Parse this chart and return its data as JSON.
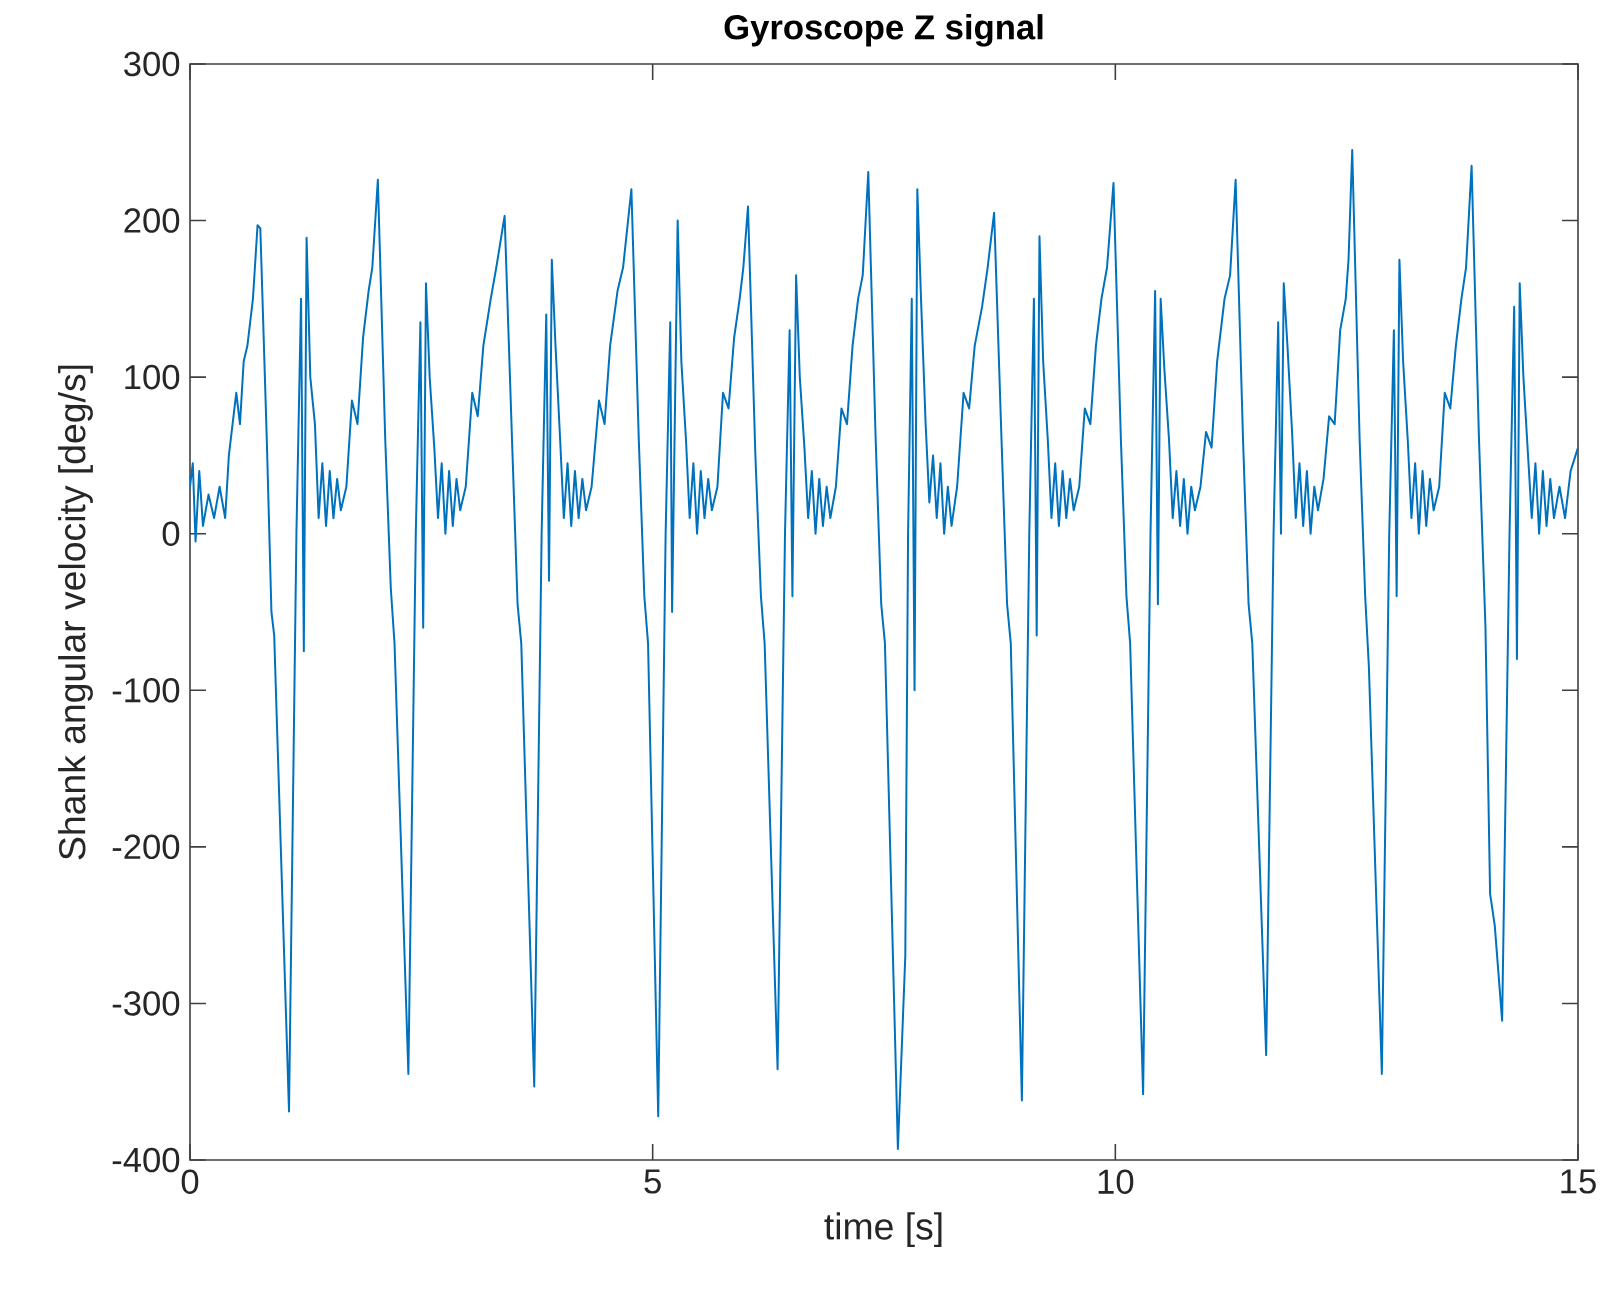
{
  "chart_data": {
    "type": "line",
    "title": "Gyroscope Z signal",
    "xlabel": "time [s]",
    "ylabel": "Shank angular velocity [deg/s]",
    "xlim": [
      0,
      15
    ],
    "ylim": [
      -400,
      300
    ],
    "xticks": [
      0,
      5,
      10,
      15
    ],
    "yticks": [
      -400,
      -300,
      -200,
      -100,
      0,
      100,
      200,
      300
    ],
    "series": [
      {
        "color": "#0072bd",
        "x": [
          0,
          0.03,
          0.06,
          0.1,
          0.14,
          0.2,
          0.26,
          0.32,
          0.38,
          0.42,
          0.46,
          0.5,
          0.54,
          0.58,
          0.62,
          0.68,
          0.73,
          0.76,
          0.83,
          0.88,
          0.91,
          1.07,
          1.15,
          1.2,
          1.23,
          1.26,
          1.3,
          1.35,
          1.39,
          1.43,
          1.47,
          1.51,
          1.55,
          1.59,
          1.63,
          1.69,
          1.75,
          1.81,
          1.87,
          1.93,
          1.97,
          2.03,
          2.11,
          2.17,
          2.21,
          2.36,
          2.44,
          2.49,
          2.52,
          2.55,
          2.59,
          2.64,
          2.68,
          2.72,
          2.76,
          2.8,
          2.84,
          2.88,
          2.92,
          2.98,
          3.05,
          3.11,
          3.17,
          3.25,
          3.31,
          3.4,
          3.48,
          3.54,
          3.58,
          3.72,
          3.8,
          3.85,
          3.88,
          3.91,
          3.95,
          4.0,
          4.04,
          4.08,
          4.12,
          4.16,
          4.2,
          4.24,
          4.28,
          4.34,
          4.42,
          4.48,
          4.54,
          4.62,
          4.68,
          4.77,
          4.85,
          4.91,
          4.95,
          5.06,
          5.14,
          5.19,
          5.21,
          5.27,
          5.31,
          5.36,
          5.4,
          5.44,
          5.48,
          5.52,
          5.56,
          5.6,
          5.64,
          5.7,
          5.76,
          5.82,
          5.88,
          5.94,
          5.98,
          6.03,
          6.11,
          6.17,
          6.21,
          6.35,
          6.43,
          6.48,
          6.51,
          6.55,
          6.59,
          6.64,
          6.68,
          6.72,
          6.76,
          6.8,
          6.84,
          6.88,
          6.92,
          6.98,
          7.04,
          7.1,
          7.16,
          7.22,
          7.27,
          7.33,
          7.41,
          7.47,
          7.51,
          7.65,
          7.73,
          7.76,
          7.8,
          7.83,
          7.86,
          7.9,
          7.95,
          7.99,
          8.03,
          8.07,
          8.11,
          8.15,
          8.19,
          8.23,
          8.29,
          8.36,
          8.42,
          8.48,
          8.56,
          8.62,
          8.69,
          8.77,
          8.83,
          8.87,
          8.99,
          9.07,
          9.12,
          9.15,
          9.18,
          9.22,
          9.27,
          9.31,
          9.35,
          9.39,
          9.43,
          9.47,
          9.51,
          9.55,
          9.61,
          9.67,
          9.73,
          9.79,
          9.85,
          9.91,
          9.98,
          10.06,
          10.12,
          10.16,
          10.3,
          10.38,
          10.43,
          10.46,
          10.49,
          10.53,
          10.58,
          10.62,
          10.66,
          10.7,
          10.74,
          10.78,
          10.82,
          10.86,
          10.92,
          10.98,
          11.04,
          11.1,
          11.18,
          11.24,
          11.3,
          11.38,
          11.44,
          11.48,
          11.63,
          11.71,
          11.76,
          11.79,
          11.82,
          11.86,
          11.91,
          11.95,
          11.99,
          12.03,
          12.07,
          12.11,
          12.15,
          12.19,
          12.25,
          12.31,
          12.37,
          12.43,
          12.49,
          12.52,
          12.56,
          12.64,
          12.7,
          12.74,
          12.88,
          12.96,
          13.01,
          13.04,
          13.07,
          13.11,
          13.16,
          13.2,
          13.24,
          13.28,
          13.32,
          13.36,
          13.4,
          13.44,
          13.5,
          13.56,
          13.62,
          13.68,
          13.74,
          13.79,
          13.85,
          13.93,
          14.0,
          14.05,
          14.1,
          14.18,
          14.26,
          14.31,
          14.34,
          14.37,
          14.41,
          14.46,
          14.5,
          14.54,
          14.58,
          14.62,
          14.66,
          14.7,
          14.74,
          14.8,
          14.86,
          14.92,
          15.0
        ],
        "values": [
          30,
          45,
          -5,
          40,
          5,
          25,
          10,
          30,
          10,
          50,
          70,
          90,
          70,
          110,
          120,
          150,
          197,
          195,
          60,
          -50,
          -65,
          -369,
          0,
          150,
          -75,
          189,
          100,
          70,
          10,
          45,
          5,
          40,
          10,
          35,
          15,
          30,
          85,
          70,
          125,
          155,
          170,
          226,
          60,
          -35,
          -70,
          -345,
          0,
          135,
          -60,
          160,
          100,
          55,
          10,
          45,
          0,
          40,
          5,
          35,
          15,
          30,
          90,
          75,
          120,
          150,
          170,
          203,
          60,
          -45,
          -70,
          -353,
          0,
          140,
          -30,
          175,
          120,
          60,
          10,
          45,
          5,
          40,
          10,
          35,
          15,
          30,
          85,
          70,
          120,
          155,
          170,
          220,
          60,
          -40,
          -70,
          -372,
          0,
          135,
          -50,
          200,
          110,
          60,
          10,
          45,
          0,
          40,
          10,
          35,
          15,
          30,
          90,
          80,
          125,
          150,
          170,
          209,
          50,
          -40,
          -70,
          -342,
          0,
          130,
          -40,
          165,
          100,
          55,
          10,
          40,
          0,
          35,
          5,
          30,
          10,
          30,
          80,
          70,
          120,
          150,
          165,
          231,
          60,
          -45,
          -70,
          -393,
          -270,
          0,
          150,
          -100,
          220,
          150,
          70,
          20,
          50,
          10,
          45,
          0,
          30,
          5,
          30,
          90,
          80,
          120,
          145,
          170,
          205,
          60,
          -45,
          -70,
          -362,
          0,
          150,
          -65,
          190,
          110,
          60,
          10,
          45,
          5,
          40,
          10,
          35,
          15,
          30,
          80,
          70,
          120,
          150,
          170,
          224,
          60,
          -40,
          -70,
          -358,
          0,
          155,
          -45,
          150,
          105,
          60,
          10,
          40,
          5,
          35,
          0,
          30,
          15,
          30,
          65,
          55,
          110,
          150,
          165,
          226,
          60,
          -45,
          -70,
          -333,
          0,
          135,
          0,
          160,
          120,
          65,
          10,
          45,
          5,
          40,
          0,
          30,
          15,
          35,
          75,
          70,
          130,
          150,
          175,
          245,
          60,
          -40,
          -85,
          -345,
          0,
          130,
          -40,
          175,
          110,
          60,
          10,
          45,
          0,
          40,
          5,
          35,
          15,
          30,
          90,
          80,
          120,
          150,
          170,
          235,
          60,
          -60,
          -230,
          -250,
          -311,
          0,
          145,
          -80,
          160,
          100,
          50,
          10,
          45,
          0,
          40,
          5,
          35,
          10,
          30,
          10,
          40,
          55
        ]
      }
    ]
  }
}
